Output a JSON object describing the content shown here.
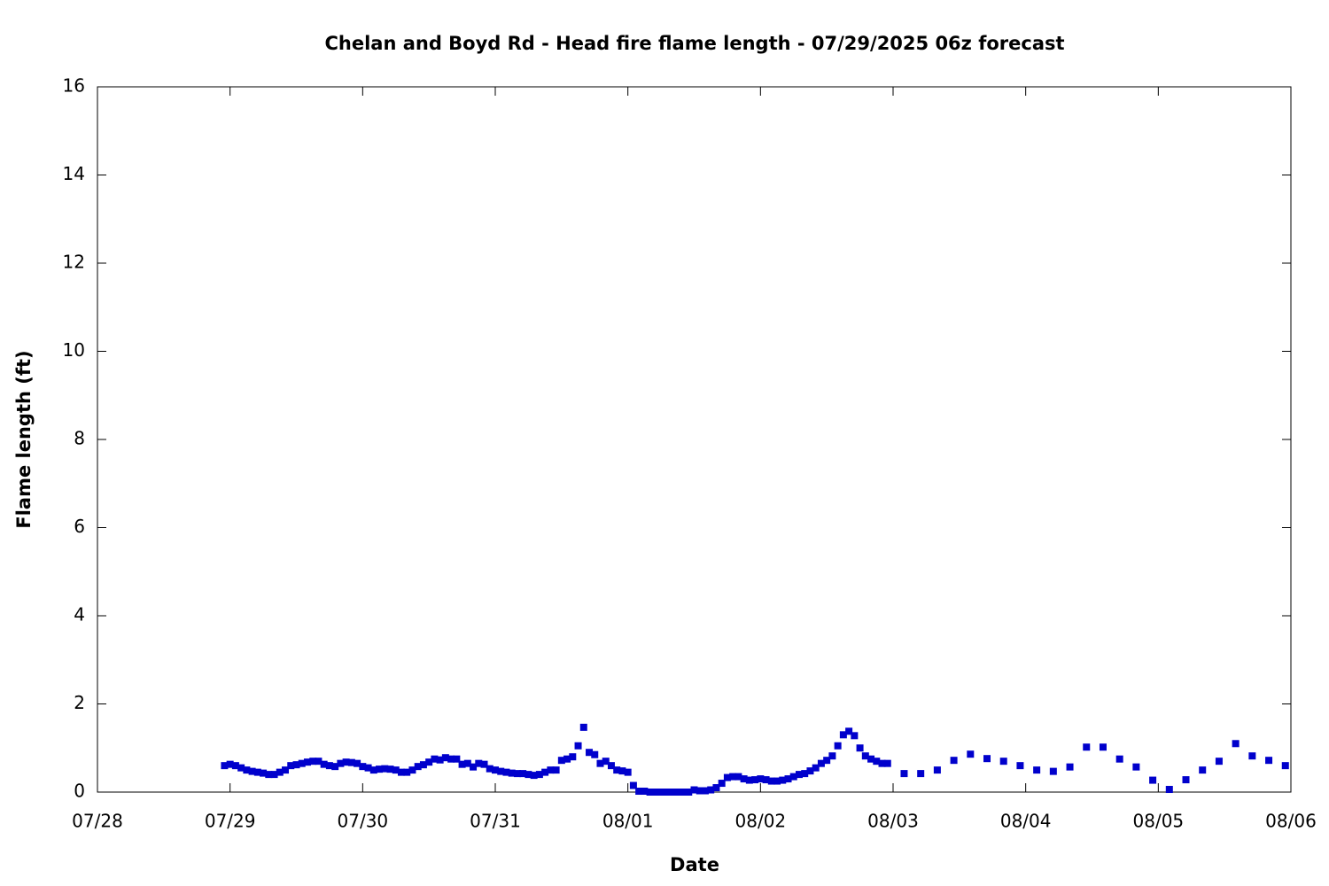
{
  "chart_data": {
    "type": "scatter",
    "title": "Chelan and Boyd Rd - Head fire flame length - 07/29/2025 06z forecast",
    "xlabel": "Date",
    "ylabel": "Flame length (ft)",
    "color": "#0000cc",
    "x": [
      23,
      24,
      25,
      26,
      27,
      28,
      29,
      30,
      31,
      32,
      33,
      34,
      35,
      36,
      37,
      38,
      39,
      40,
      41,
      42,
      43,
      44,
      45,
      46,
      47,
      48,
      49,
      50,
      51,
      52,
      53,
      54,
      55,
      56,
      57,
      58,
      59,
      60,
      61,
      62,
      63,
      64,
      65,
      66,
      67,
      68,
      69,
      70,
      71,
      72,
      73,
      74,
      75,
      76,
      77,
      78,
      79,
      80,
      81,
      82,
      83,
      84,
      85,
      86,
      87,
      88,
      89,
      90,
      91,
      92,
      93,
      94,
      95,
      96,
      97,
      98,
      99,
      100,
      101,
      102,
      103,
      104,
      105,
      106,
      107,
      108,
      109,
      110,
      111,
      112,
      113,
      114,
      115,
      116,
      117,
      118,
      119,
      120,
      121,
      122,
      123,
      124,
      125,
      126,
      127,
      128,
      129,
      130,
      131,
      132,
      133,
      134,
      135,
      136,
      137,
      138,
      139,
      140,
      141,
      142,
      143,
      146,
      149,
      152,
      155,
      158,
      161,
      164,
      167,
      170,
      173,
      176,
      179,
      182,
      185,
      188,
      191,
      194,
      197,
      200,
      203,
      206,
      209,
      212,
      215
    ],
    "values": [
      0.6,
      0.63,
      0.6,
      0.55,
      0.5,
      0.47,
      0.45,
      0.43,
      0.4,
      0.4,
      0.45,
      0.5,
      0.6,
      0.62,
      0.65,
      0.68,
      0.7,
      0.7,
      0.63,
      0.6,
      0.58,
      0.65,
      0.68,
      0.67,
      0.65,
      0.58,
      0.55,
      0.5,
      0.52,
      0.53,
      0.52,
      0.5,
      0.45,
      0.45,
      0.5,
      0.58,
      0.62,
      0.68,
      0.75,
      0.73,
      0.78,
      0.75,
      0.75,
      0.63,
      0.65,
      0.57,
      0.65,
      0.63,
      0.53,
      0.5,
      0.47,
      0.45,
      0.43,
      0.42,
      0.42,
      0.4,
      0.38,
      0.4,
      0.45,
      0.5,
      0.5,
      0.72,
      0.75,
      0.8,
      1.05,
      1.47,
      0.9,
      0.85,
      0.65,
      0.7,
      0.6,
      0.5,
      0.48,
      0.45,
      0.15,
      0.02,
      0.02,
      0,
      0,
      0,
      0,
      0,
      0,
      0,
      0,
      0.05,
      0.03,
      0.03,
      0.05,
      0.1,
      0.2,
      0.33,
      0.35,
      0.35,
      0.3,
      0.27,
      0.28,
      0.3,
      0.28,
      0.25,
      0.25,
      0.27,
      0.3,
      0.35,
      0.4,
      0.42,
      0.48,
      0.55,
      0.65,
      0.72,
      0.82,
      1.05,
      1.3,
      1.38,
      1.28,
      1.0,
      0.82,
      0.75,
      0.7,
      0.65,
      0.65,
      0.42,
      0.42,
      0.5,
      0.72,
      0.86,
      0.76,
      0.7,
      0.6,
      0.5,
      0.47,
      0.57,
      1.02,
      1.02,
      0.75,
      0.57,
      0.27,
      0.06,
      0.28,
      0.5,
      0.7,
      1.1,
      0.82,
      0.72,
      0.6
    ],
    "xlim": [
      0,
      216
    ],
    "xticks": [
      {
        "value": 0,
        "label": "07/28"
      },
      {
        "value": 24,
        "label": "07/29"
      },
      {
        "value": 48,
        "label": "07/30"
      },
      {
        "value": 72,
        "label": "07/31"
      },
      {
        "value": 96,
        "label": "08/01"
      },
      {
        "value": 120,
        "label": "08/02"
      },
      {
        "value": 144,
        "label": "08/03"
      },
      {
        "value": 168,
        "label": "08/04"
      },
      {
        "value": 192,
        "label": "08/05"
      },
      {
        "value": 216,
        "label": "08/06"
      }
    ],
    "ylim": [
      0,
      16
    ],
    "yticks": [
      0,
      2,
      4,
      6,
      8,
      10,
      12,
      14,
      16
    ]
  }
}
